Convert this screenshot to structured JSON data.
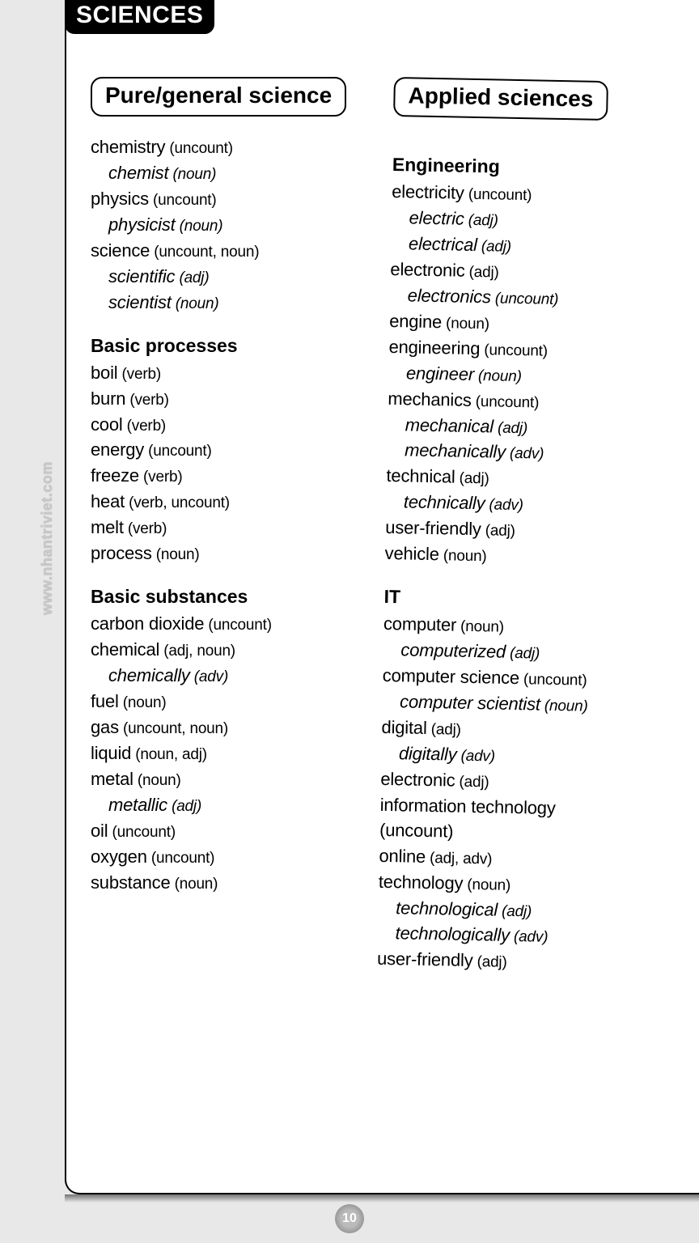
{
  "header": {
    "tab": "SCIENCES"
  },
  "watermark": "www.nhantriviet.com",
  "page_number": "10",
  "left": {
    "title": "Pure/general science",
    "groups": [
      {
        "heading": null,
        "items": [
          {
            "word": "chemistry",
            "pos": "(uncount)",
            "indent": false
          },
          {
            "word": "chemist",
            "pos": "(noun)",
            "indent": true
          },
          {
            "word": "physics",
            "pos": "(uncount)",
            "indent": false
          },
          {
            "word": "physicist",
            "pos": "(noun)",
            "indent": true
          },
          {
            "word": "science",
            "pos": "(uncount, noun)",
            "indent": false
          },
          {
            "word": "scientific",
            "pos": "(adj)",
            "indent": true
          },
          {
            "word": "scientist",
            "pos": "(noun)",
            "indent": true
          }
        ]
      },
      {
        "heading": "Basic processes",
        "items": [
          {
            "word": "boil",
            "pos": "(verb)",
            "indent": false
          },
          {
            "word": "burn",
            "pos": "(verb)",
            "indent": false
          },
          {
            "word": "cool",
            "pos": "(verb)",
            "indent": false
          },
          {
            "word": "energy",
            "pos": "(uncount)",
            "indent": false
          },
          {
            "word": "freeze",
            "pos": "(verb)",
            "indent": false
          },
          {
            "word": "heat",
            "pos": "(verb, uncount)",
            "indent": false
          },
          {
            "word": "melt",
            "pos": "(verb)",
            "indent": false
          },
          {
            "word": "process",
            "pos": "(noun)",
            "indent": false
          }
        ]
      },
      {
        "heading": "Basic substances",
        "items": [
          {
            "word": "carbon dioxide",
            "pos": "(uncount)",
            "indent": false
          },
          {
            "word": "chemical",
            "pos": "(adj, noun)",
            "indent": false
          },
          {
            "word": "chemically",
            "pos": "(adv)",
            "indent": true
          },
          {
            "word": "fuel",
            "pos": "(noun)",
            "indent": false
          },
          {
            "word": "gas",
            "pos": "(uncount, noun)",
            "indent": false
          },
          {
            "word": "liquid",
            "pos": "(noun, adj)",
            "indent": false
          },
          {
            "word": "metal",
            "pos": "(noun)",
            "indent": false
          },
          {
            "word": "metallic",
            "pos": "(adj)",
            "indent": true
          },
          {
            "word": "oil",
            "pos": "(uncount)",
            "indent": false
          },
          {
            "word": "oxygen",
            "pos": "(uncount)",
            "indent": false
          },
          {
            "word": "substance",
            "pos": "(noun)",
            "indent": false
          }
        ]
      }
    ]
  },
  "right": {
    "title": "Applied sciences",
    "groups": [
      {
        "heading": "Engineering",
        "items": [
          {
            "word": "electricity",
            "pos": "(uncount)",
            "indent": false
          },
          {
            "word": "electric",
            "pos": "(adj)",
            "indent": true
          },
          {
            "word": "electrical",
            "pos": "(adj)",
            "indent": true
          },
          {
            "word": "electronic",
            "pos": "(adj)",
            "indent": false
          },
          {
            "word": "electronics",
            "pos": "(uncount)",
            "indent": true
          },
          {
            "word": "engine",
            "pos": "(noun)",
            "indent": false
          },
          {
            "word": "engineering",
            "pos": "(uncount)",
            "indent": false
          },
          {
            "word": "engineer",
            "pos": "(noun)",
            "indent": true
          },
          {
            "word": "mechanics",
            "pos": "(uncount)",
            "indent": false
          },
          {
            "word": "mechanical",
            "pos": "(adj)",
            "indent": true
          },
          {
            "word": "mechanically",
            "pos": "(adv)",
            "indent": true
          },
          {
            "word": "technical",
            "pos": "(adj)",
            "indent": false
          },
          {
            "word": "technically",
            "pos": "(adv)",
            "indent": true
          },
          {
            "word": "user-friendly",
            "pos": "(adj)",
            "indent": false
          },
          {
            "word": "vehicle",
            "pos": "(noun)",
            "indent": false
          }
        ]
      },
      {
        "heading": "IT",
        "items": [
          {
            "word": "computer",
            "pos": "(noun)",
            "indent": false
          },
          {
            "word": "computerized",
            "pos": "(adj)",
            "indent": true
          },
          {
            "word": "computer science",
            "pos": "(uncount)",
            "indent": false
          },
          {
            "word": "computer scientist",
            "pos": "(noun)",
            "indent": true
          },
          {
            "word": "digital",
            "pos": "(adj)",
            "indent": false
          },
          {
            "word": "digitally",
            "pos": "(adv)",
            "indent": true
          },
          {
            "word": "electronic",
            "pos": "(adj)",
            "indent": false
          },
          {
            "word": "information technology",
            "pos": "",
            "indent": false
          },
          {
            "word": "(uncount)",
            "pos": "",
            "indent": false
          },
          {
            "word": "online",
            "pos": "(adj, adv)",
            "indent": false
          },
          {
            "word": "technology",
            "pos": "(noun)",
            "indent": false
          },
          {
            "word": "technological",
            "pos": "(adj)",
            "indent": true
          },
          {
            "word": "technologically",
            "pos": "(adv)",
            "indent": true
          },
          {
            "word": "user-friendly",
            "pos": "(adj)",
            "indent": false
          }
        ]
      }
    ]
  }
}
